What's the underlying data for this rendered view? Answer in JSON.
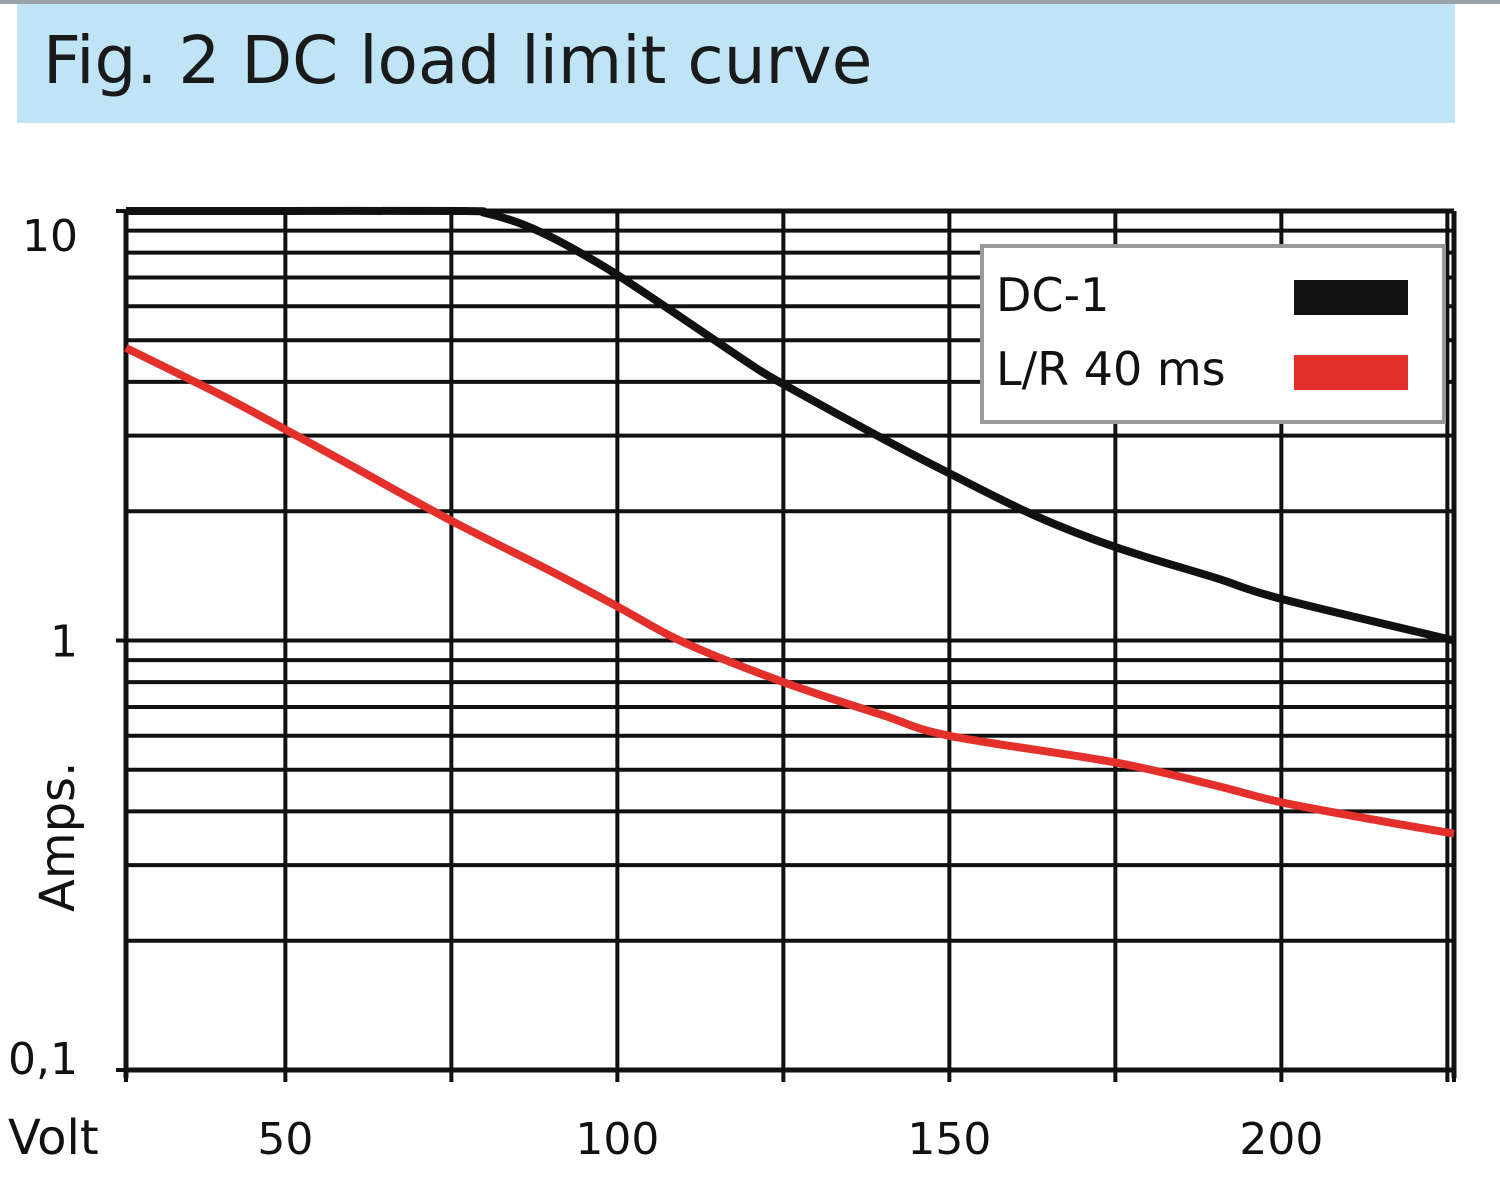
{
  "header": {
    "title": "Fig. 2 DC load limit curve"
  },
  "colors": {
    "title_band": "#bee4f6",
    "grid": "#111111",
    "dc1": "#111111",
    "lr40": "#e3302a",
    "legend_border": "#999999"
  },
  "chart_data": {
    "type": "line",
    "title": "Fig. 2 DC load limit curve",
    "xlabel": "Volt",
    "ylabel": "Amps.",
    "xlim": [
      26,
      226
    ],
    "ylim": [
      0.1,
      10
    ],
    "yscale": "log",
    "grid": true,
    "legend_position": "top-right",
    "x_ticks": [
      {
        "value": 50,
        "label": "50"
      },
      {
        "value": 100,
        "label": "100"
      },
      {
        "value": 150,
        "label": "150"
      },
      {
        "value": 200,
        "label": "200"
      }
    ],
    "y_ticks": [
      {
        "value": 10,
        "label": "10"
      },
      {
        "value": 1,
        "label": "1"
      },
      {
        "value": 0.1,
        "label": "0,1"
      }
    ],
    "series": [
      {
        "name": "DC-1",
        "color": "#111111",
        "points": [
          [
            26,
            10
          ],
          [
            50,
            10
          ],
          [
            77,
            10
          ],
          [
            80,
            9.9
          ],
          [
            85,
            9.4
          ],
          [
            90,
            8.7
          ],
          [
            95,
            7.9
          ],
          [
            100,
            7.1
          ],
          [
            110,
            5.6
          ],
          [
            120,
            4.4
          ],
          [
            125,
            3.95
          ],
          [
            140,
            2.95
          ],
          [
            150,
            2.45
          ],
          [
            163,
            1.95
          ],
          [
            175,
            1.65
          ],
          [
            190,
            1.4
          ],
          [
            200,
            1.25
          ],
          [
            226,
            1.0
          ]
        ]
      },
      {
        "name": "L/R 40 ms",
        "color": "#e3302a",
        "points": [
          [
            26,
            4.8
          ],
          [
            40,
            3.75
          ],
          [
            50,
            3.1
          ],
          [
            60,
            2.55
          ],
          [
            75,
            1.9
          ],
          [
            90,
            1.45
          ],
          [
            100,
            1.2
          ],
          [
            110,
            0.99
          ],
          [
            125,
            0.8
          ],
          [
            140,
            0.67
          ],
          [
            150,
            0.6
          ],
          [
            175,
            0.52
          ],
          [
            190,
            0.46
          ],
          [
            200,
            0.42
          ],
          [
            215,
            0.38
          ],
          [
            226,
            0.355
          ]
        ]
      }
    ]
  }
}
